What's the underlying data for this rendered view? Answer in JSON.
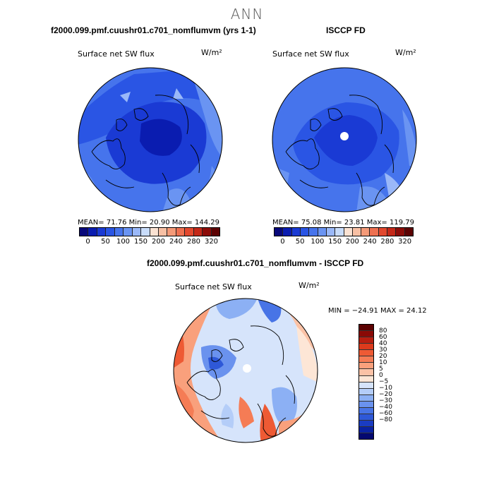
{
  "figure": {
    "title": "ANN"
  },
  "panels": {
    "model": {
      "title": "f2000.099.pmf.cuushr01.c701_nomflumvm (yrs 1-1)",
      "var_label": "Surface net SW flux",
      "units": "W/m²",
      "stats": "MEAN=  71.76   Min=  20.90   Max= 144.29"
    },
    "obs": {
      "title": "ISCCP FD",
      "var_label": "Surface net SW flux",
      "units": "W/m²",
      "stats": "MEAN=  75.08   Min=  23.81   Max= 119.79"
    },
    "diff": {
      "title": "f2000.099.pmf.cuushr01.c701_nomflumvm - ISCCP FD",
      "var_label": "Surface net SW flux",
      "units": "W/m²",
      "stats": "MIN = −24.91 MAX =  24.12"
    }
  },
  "colorbars": {
    "flux": {
      "colors": [
        "#08087a",
        "#0a1cb0",
        "#1a3ad4",
        "#2a55e4",
        "#4674ec",
        "#6a94f2",
        "#9ab8f8",
        "#c8dcfa",
        "#fbe2d2",
        "#f8c0a4",
        "#f49a78",
        "#ee7050",
        "#e2482e",
        "#c42818",
        "#8c0c08",
        "#5c0202"
      ],
      "tick_labels": [
        "0",
        "50",
        "100",
        "150",
        "200",
        "240",
        "280",
        "320"
      ]
    },
    "diff": {
      "colors": [
        "#5c0202",
        "#8a0a06",
        "#b81e10",
        "#dc3a1c",
        "#ee5a34",
        "#f57c55",
        "#f9a07c",
        "#fbc2a6",
        "#fde6d6",
        "#d6e4fb",
        "#b4cdf8",
        "#8cb0f4",
        "#6a92ee",
        "#4874e6",
        "#2e58d8",
        "#1a3cc2",
        "#0a22a2",
        "#040870"
      ],
      "tick_labels": [
        "80",
        "60",
        "40",
        "30",
        "20",
        "10",
        "5",
        "0",
        "−5",
        "−10",
        "−20",
        "−30",
        "−40",
        "−60",
        "−80"
      ]
    }
  }
}
